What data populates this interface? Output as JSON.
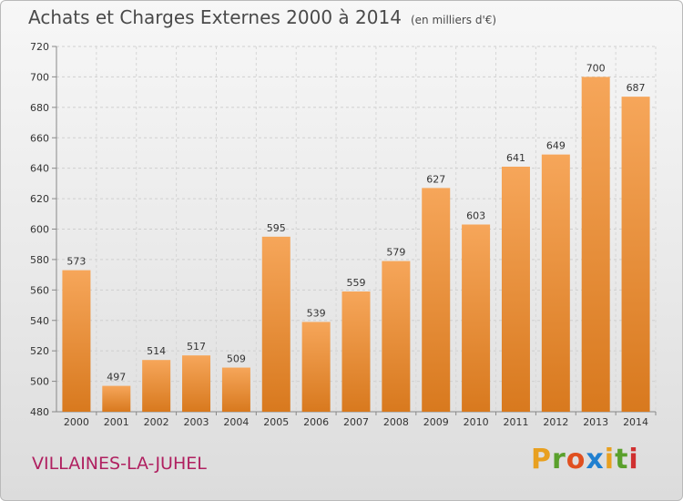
{
  "header": {
    "title": "Achats et Charges Externes 2000 à 2014",
    "unit": "(en milliers d'€)"
  },
  "footer": {
    "commune": "VILLAINES-LA-JUHEL",
    "logo_text": "Proxiti"
  },
  "colors": {
    "bar_light": "#f6a65a",
    "bar_dark": "#d8791e",
    "commune": "#b02060",
    "logo": [
      "#e8a020",
      "#5aa02c",
      "#e05020",
      "#2080d0",
      "#e8a020",
      "#5aa02c",
      "#d03030"
    ]
  },
  "chart_data": {
    "type": "bar",
    "title": "Achats et Charges Externes 2000 à 2014",
    "subtitle": "(en milliers d'€)",
    "categories": [
      "2000",
      "2001",
      "2002",
      "2003",
      "2004",
      "2005",
      "2006",
      "2007",
      "2008",
      "2009",
      "2010",
      "2011",
      "2012",
      "2013",
      "2014"
    ],
    "values": [
      573,
      497,
      514,
      517,
      509,
      595,
      539,
      559,
      579,
      627,
      603,
      641,
      649,
      700,
      687
    ],
    "ylim": [
      480,
      720
    ],
    "yticks": [
      480,
      500,
      520,
      540,
      560,
      580,
      600,
      620,
      640,
      660,
      680,
      700,
      720
    ],
    "grid": true,
    "legend": "none"
  }
}
